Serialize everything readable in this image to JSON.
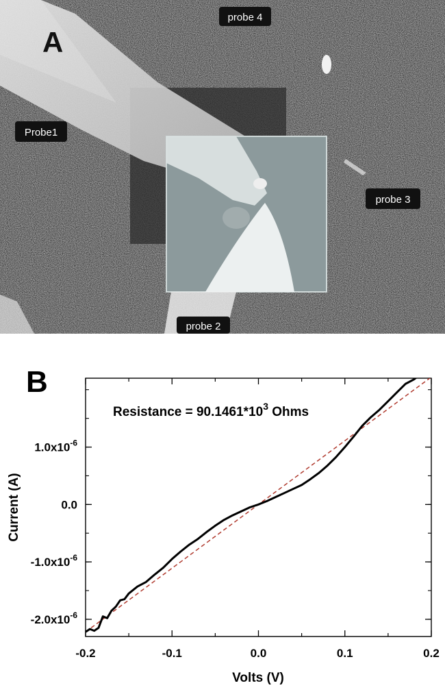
{
  "panel_a": {
    "label": "A",
    "probes": [
      "Probe1",
      "probe 2",
      "probe 3",
      "probe 4"
    ]
  },
  "panel_b": {
    "label": "B"
  },
  "chart_data": {
    "type": "line",
    "xlabel": "Volts (V)",
    "ylabel": "Current (A)",
    "annotation_prefix": "Resistance = 90.1461*10",
    "annotation_exp": "3",
    "annotation_suffix": " Ohms",
    "xlim": [
      -0.2,
      0.2
    ],
    "ylim": [
      -2.3e-06,
      2.2e-06
    ],
    "x_ticks": [
      -0.2,
      -0.1,
      0.0,
      0.1,
      0.2
    ],
    "x_tick_labels": [
      "-0.2",
      "-0.1",
      "0.0",
      "0.1",
      "0.2"
    ],
    "y_ticks": [
      {
        "value": 1e-06,
        "mant": "1.0x10",
        "exp": "-6"
      },
      {
        "value": 0.0,
        "mant": "0.0",
        "exp": ""
      },
      {
        "value": -1e-06,
        "mant": "-1.0x10",
        "exp": "-6"
      },
      {
        "value": -2e-06,
        "mant": "-2.0x10",
        "exp": "-6"
      }
    ],
    "grid": false,
    "series": [
      {
        "color": "#000000",
        "x": [
          -0.2,
          -0.195,
          -0.19,
          -0.185,
          -0.18,
          -0.175,
          -0.17,
          -0.165,
          -0.16,
          -0.155,
          -0.15,
          -0.14,
          -0.13,
          -0.12,
          -0.11,
          -0.1,
          -0.09,
          -0.08,
          -0.07,
          -0.06,
          -0.05,
          -0.04,
          -0.03,
          -0.02,
          -0.01,
          0.0,
          0.01,
          0.02,
          0.03,
          0.04,
          0.05,
          0.06,
          0.07,
          0.08,
          0.09,
          0.1,
          0.11,
          0.12,
          0.13,
          0.14,
          0.15,
          0.16,
          0.17,
          0.18,
          0.186
        ],
        "y": [
          -2.22e-06,
          -2.17e-06,
          -2.2e-06,
          -2.15e-06,
          -1.95e-06,
          -1.98e-06,
          -1.85e-06,
          -1.78e-06,
          -1.67e-06,
          -1.65e-06,
          -1.55e-06,
          -1.43e-06,
          -1.35e-06,
          -1.22e-06,
          -1.1e-06,
          -9.5e-07,
          -8.2e-07,
          -7e-07,
          -6e-07,
          -4.8e-07,
          -3.7e-07,
          -2.7e-07,
          -1.9e-07,
          -1.2e-07,
          -5e-08,
          0.0,
          6e-08,
          1.3e-07,
          2e-07,
          2.7e-07,
          3.4e-07,
          4.4e-07,
          5.5e-07,
          6.8e-07,
          8.3e-07,
          1e-06,
          1.18e-06,
          1.37e-06,
          1.52e-06,
          1.65e-06,
          1.8e-06,
          1.95e-06,
          2.1e-06,
          2.18e-06,
          2.25e-06
        ]
      },
      {
        "color": "#b03a2e",
        "style": "dashed",
        "x": [
          -0.2,
          0.2
        ],
        "y": [
          -2.22e-06,
          2.22e-06
        ]
      }
    ]
  }
}
